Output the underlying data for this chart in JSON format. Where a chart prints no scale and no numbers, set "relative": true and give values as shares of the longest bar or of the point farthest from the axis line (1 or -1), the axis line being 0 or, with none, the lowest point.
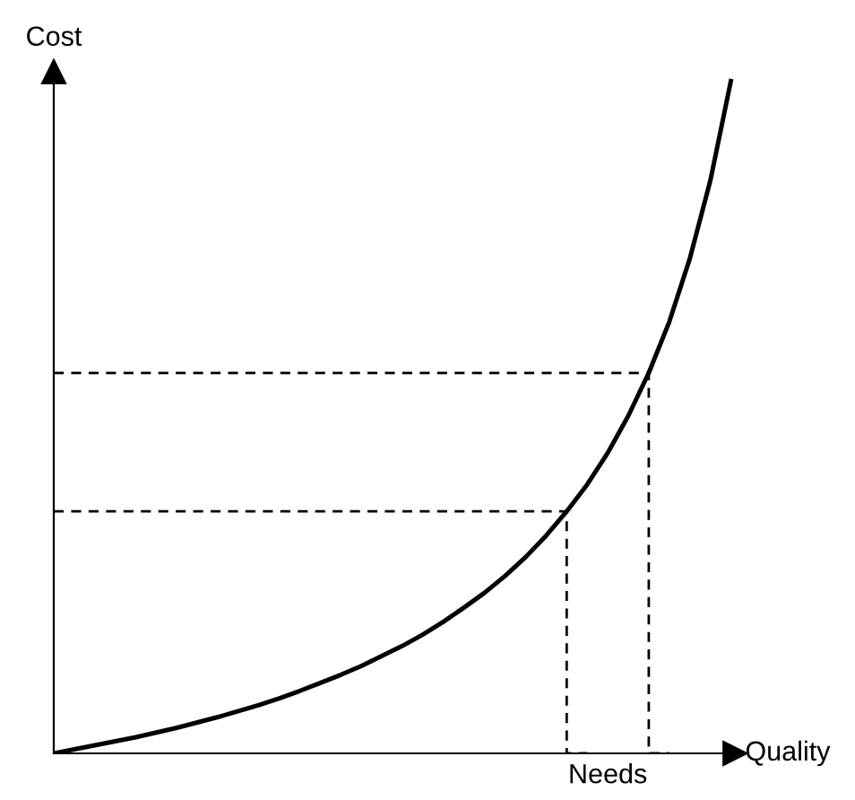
{
  "chart_data": {
    "type": "line",
    "relative": true,
    "xlabel": "Quality",
    "ylabel": "Cost",
    "line_style": "solid",
    "marker": "none",
    "tick_labels": false,
    "annotations": [
      "Needs"
    ],
    "categories": [
      null,
      null,
      null,
      null,
      null,
      null,
      null,
      null,
      null,
      null,
      null,
      null,
      null,
      null,
      null,
      null,
      null,
      null,
      null,
      null,
      null,
      null,
      null,
      null,
      null,
      null,
      null,
      null,
      null,
      null,
      null,
      null,
      null,
      null
    ],
    "series": [
      {
        "color": "#000000",
        "values": [
          0,
          0.006,
          0.012,
          0.018,
          0.024,
          0.031,
          0.038,
          0.046,
          0.054,
          0.063,
          0.072,
          0.082,
          0.093,
          0.105,
          0.117,
          0.13,
          0.145,
          0.16,
          0.177,
          0.196,
          0.217,
          0.239,
          0.264,
          0.292,
          0.324,
          0.36,
          0.4,
          0.447,
          0.502,
          0.566,
          0.642,
          0.736,
          0.852,
          1.0
        ]
      },
      {
        "type": "step",
        "color": "#000000",
        "line_style": "dashed",
        "values": [
          0.36,
          0.36,
          0.36,
          0.36,
          0.36,
          0.36,
          0.36,
          0.36,
          0.36,
          0.36,
          0.36,
          0.36,
          0.36,
          0.36,
          0.36,
          0.36,
          0.36,
          0.36,
          0.36,
          0.36,
          0.36,
          0.36,
          0.36,
          0.36,
          0.36,
          0.36,
          0,
          null,
          null,
          null,
          null,
          null,
          null,
          null
        ]
      },
      {
        "type": "step",
        "color": "#000000",
        "line_style": "dashed",
        "values": [
          0.566,
          0.566,
          0.566,
          0.566,
          0.566,
          0.566,
          0.566,
          0.566,
          0.566,
          0.566,
          0.566,
          0.566,
          0.566,
          0.566,
          0.566,
          0.566,
          0.566,
          0.566,
          0.566,
          0.566,
          0.566,
          0.566,
          0.566,
          0.566,
          0.566,
          0.566,
          0.566,
          0.566,
          0.566,
          0.566,
          0,
          null,
          null,
          null
        ]
      }
    ]
  }
}
